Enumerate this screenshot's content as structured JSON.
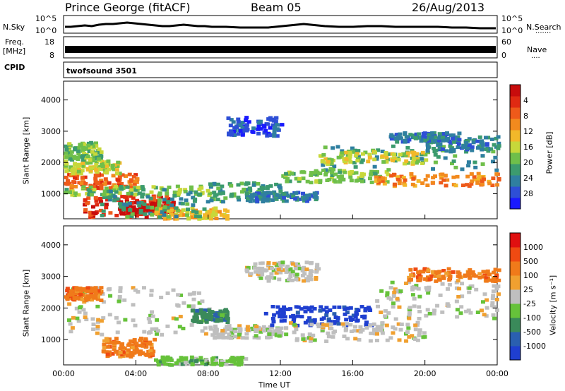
{
  "header": {
    "station": "Prince George (fitACF)",
    "beam": "Beam 05",
    "date": "26/Aug/2013"
  },
  "left_labels": {
    "nsky": "N.Sky",
    "freq_line1": "Freq.",
    "freq_line2": "[MHz]",
    "cpid": "CPID"
  },
  "right_labels": {
    "nsearch": "N.Search",
    "nsearch_dots": "·······",
    "nave": "Nave",
    "nave_dots": "····"
  },
  "top_panel_ticks": {
    "noise_left": [
      "10^5",
      "10^0"
    ],
    "noise_right": [
      "10^5",
      "10^0"
    ],
    "freq_left": [
      "18",
      "8"
    ],
    "freq_right": [
      "60",
      "0"
    ]
  },
  "cpid_text": "twofsound 3501",
  "chart_data": [
    {
      "type": "heatmap",
      "name": "Power",
      "ylabel": "Slant Range [km]",
      "ylim": [
        200,
        4600
      ],
      "yticks": [
        1000,
        2000,
        3000,
        4000
      ],
      "xlim": [
        0,
        24
      ],
      "colorbar": {
        "label": "Power [dB]",
        "ticks": [
          "4",
          "8",
          "12",
          "16",
          "20",
          "24",
          "28"
        ],
        "colors": [
          "#1a1aff",
          "#2e4fd6",
          "#2f7fa0",
          "#3c9b6e",
          "#6fbf4a",
          "#c7d83a",
          "#f2b82a",
          "#f28a1e",
          "#ee5a1a",
          "#e02a12",
          "#c80c0c"
        ]
      }
    },
    {
      "type": "heatmap",
      "name": "Velocity",
      "ylabel": "Slant Range [km]",
      "ylim": [
        200,
        4600
      ],
      "yticks": [
        1000,
        2000,
        3000,
        4000
      ],
      "xlim": [
        0,
        24
      ],
      "xticks": [
        "00:00",
        "04:00",
        "08:00",
        "12:00",
        "16:00",
        "20:00",
        "00:00"
      ],
      "xlabel": "Time UT",
      "colorbar": {
        "label": "Velocity [m s⁻¹]",
        "ticks": [
          "1000",
          "500",
          "100",
          "25",
          "-25",
          "-100",
          "-500",
          "-1000"
        ],
        "colors": [
          "#1f3fd0",
          "#2a5fb0",
          "#3a8a5a",
          "#66c23a",
          "#bfbfbf",
          "#f0a030",
          "#f07a1a",
          "#ef4a12",
          "#e01010"
        ]
      }
    }
  ]
}
